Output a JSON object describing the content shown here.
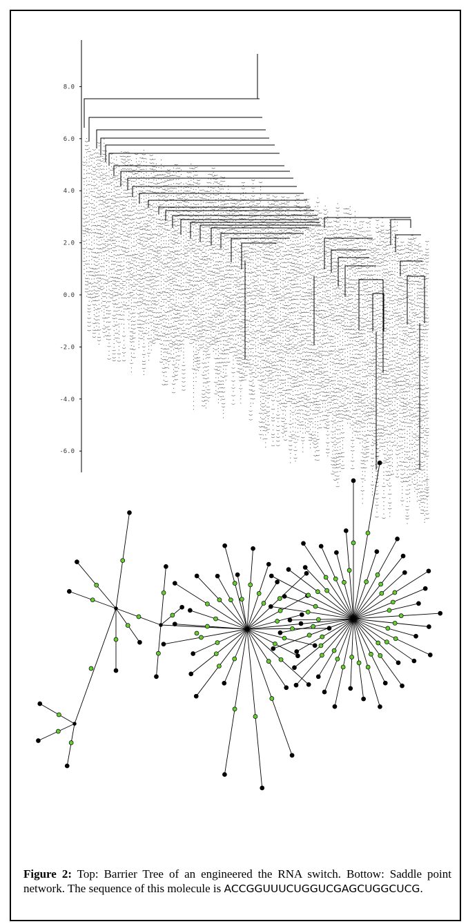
{
  "figure": {
    "label": "Figure 2:",
    "caption_main": " Top: Barrier Tree of an engineered the RNA switch. Bottow: Saddle point network. The sequence of this molecule is ",
    "sequence": "ACCGGUUUCUGGUCGAGCUGGCUCG",
    "caption_end": "."
  },
  "chart_data": [
    {
      "type": "barrier-tree",
      "title": "",
      "xlabel": "",
      "ylabel": "",
      "ylim": [
        -6.8,
        9.2
      ],
      "y_ticks": [
        "8.0",
        "6.0",
        "4.0",
        "2.0",
        "0.0",
        "-2.0",
        "-4.0",
        "-6.0"
      ],
      "grid": false
    },
    {
      "type": "network",
      "title": "",
      "node_colors": {
        "minimum": "#000000",
        "saddle": "#66cc33"
      }
    }
  ]
}
